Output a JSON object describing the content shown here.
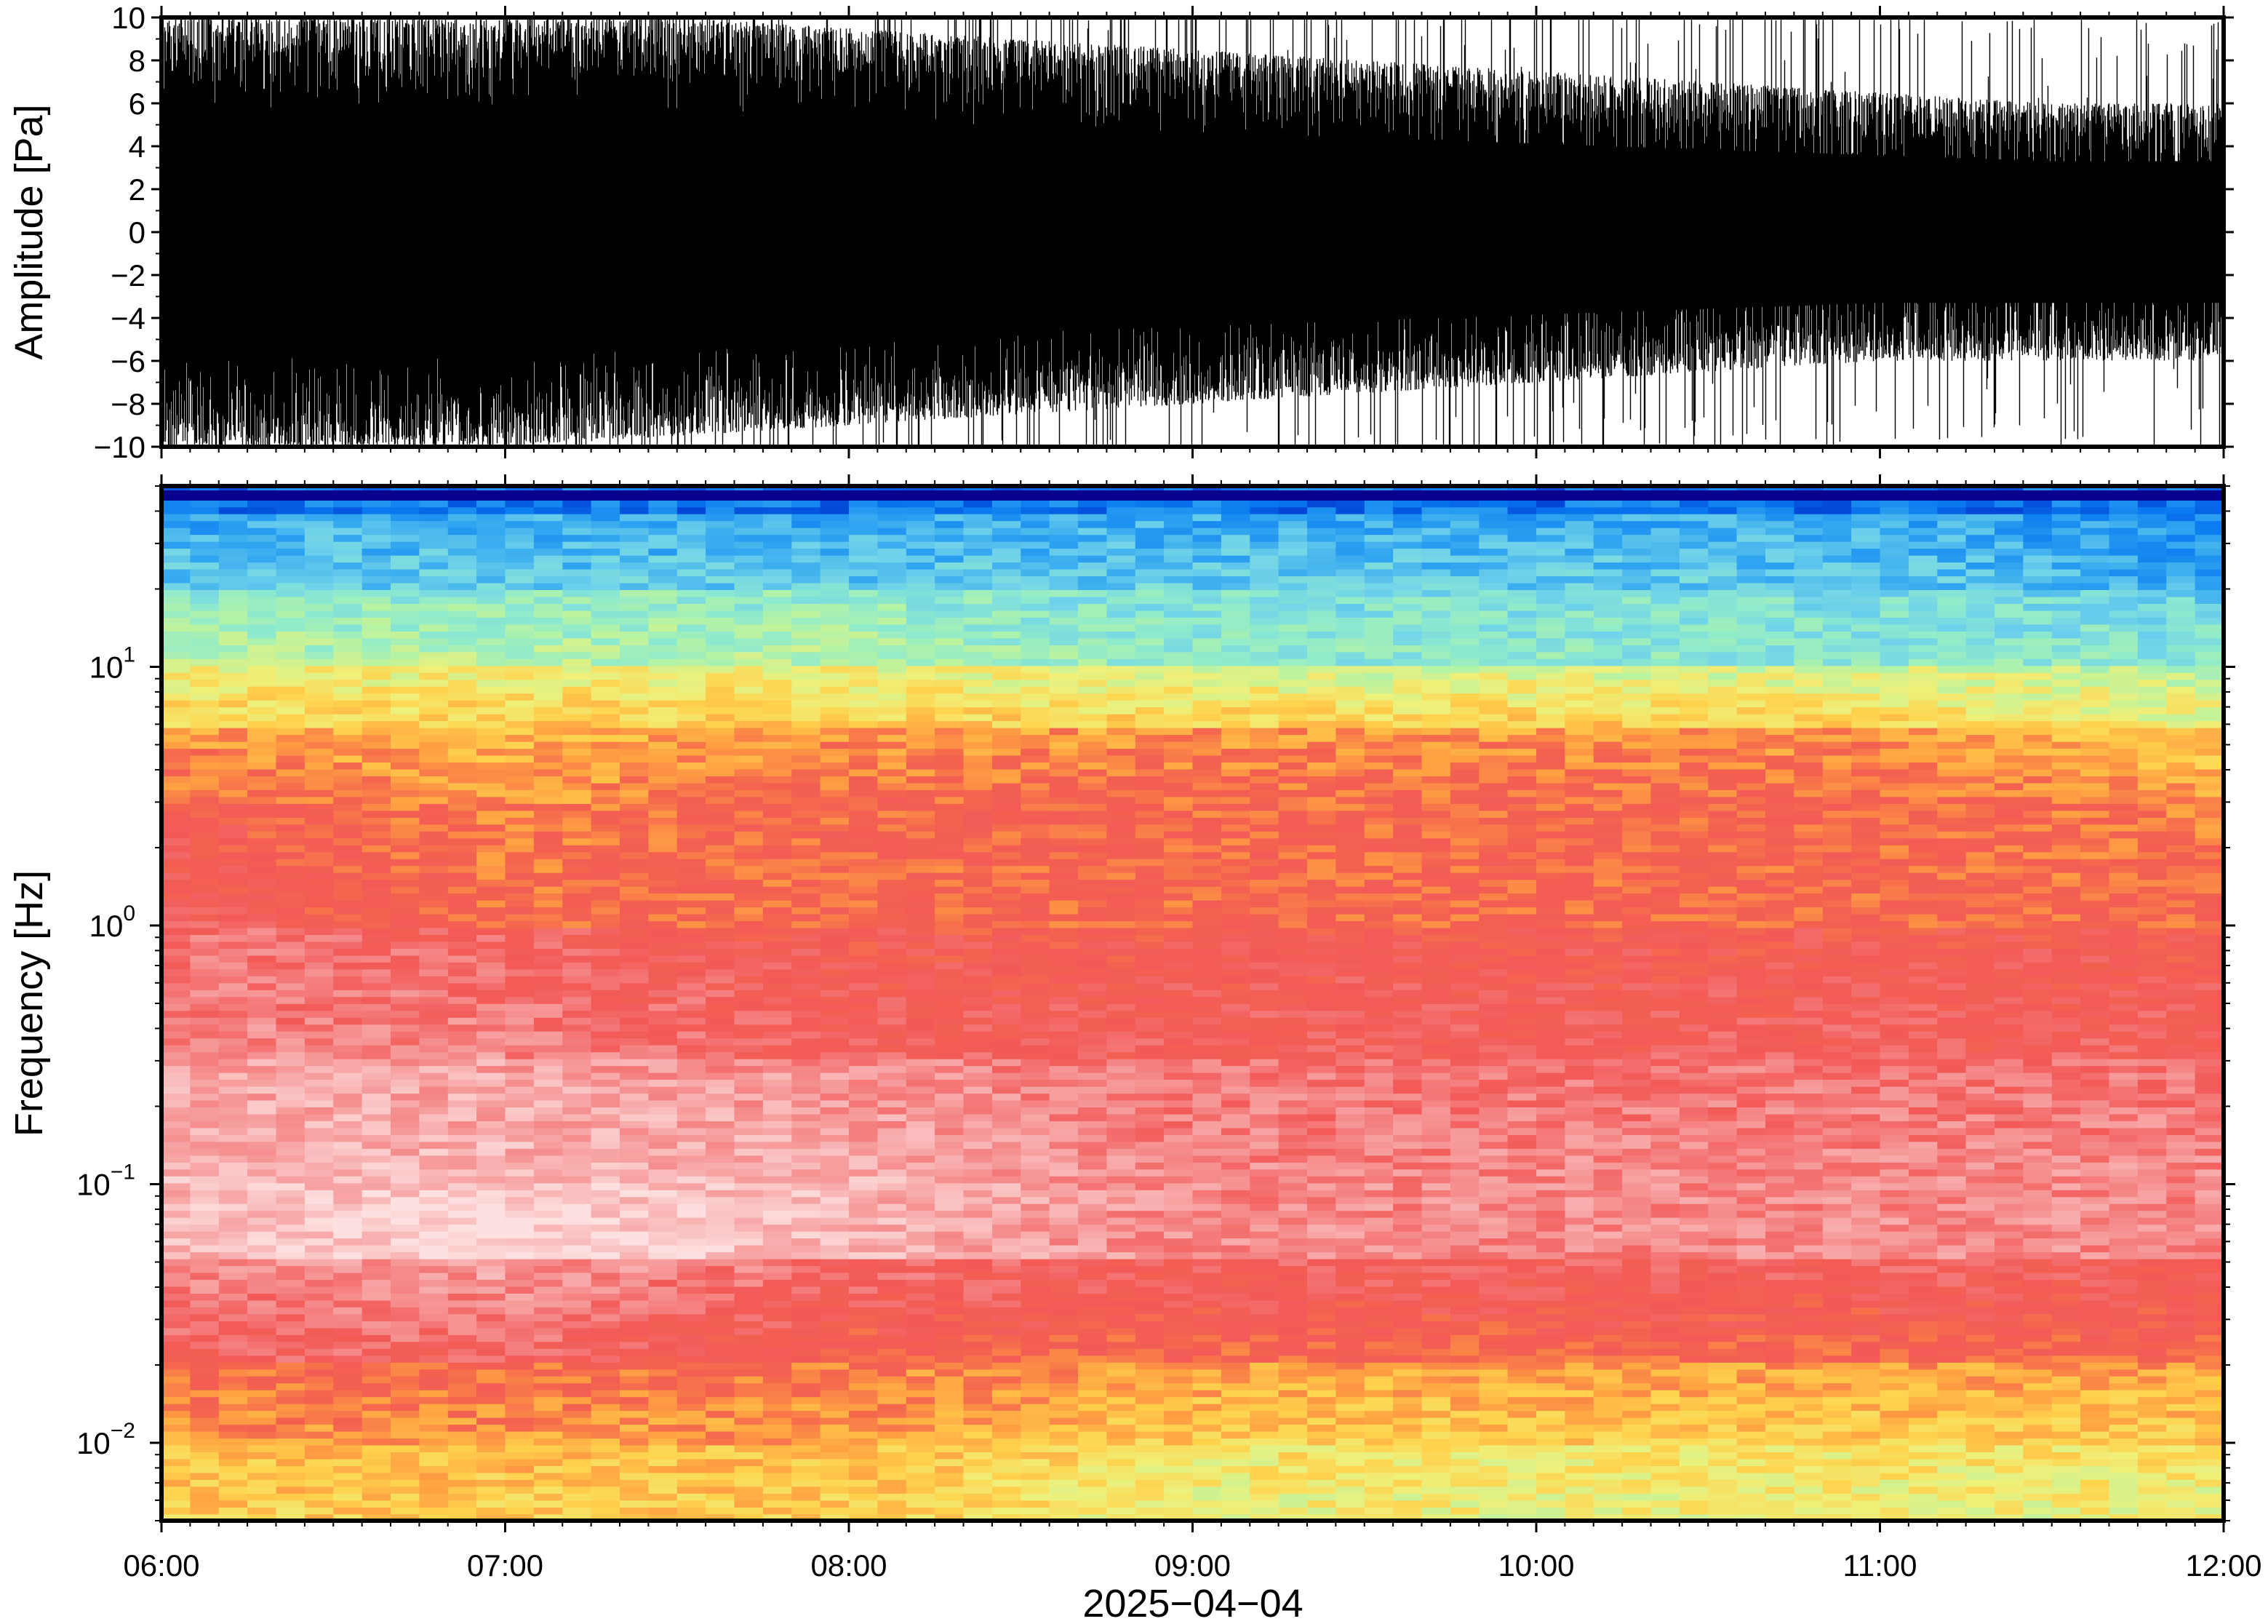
{
  "chart_data": [
    {
      "type": "line",
      "panel": "waveform",
      "title": "",
      "xlabel": "",
      "ylabel": "Amplitude [Pa]",
      "ylim": [
        -10,
        10
      ],
      "yticks": [
        10,
        8,
        6,
        4,
        2,
        0,
        -2,
        -4,
        -6,
        -8,
        -10
      ],
      "ytick_labels": [
        "10",
        "8",
        "6",
        "4",
        "2",
        "0",
        "−2",
        "−4",
        "−6",
        "−8",
        "−10"
      ],
      "xlim": [
        "06:00",
        "12:00"
      ],
      "grid": false,
      "series": [
        {
          "color": "#000000",
          "x": [
            "06:00",
            "06:30",
            "07:00",
            "07:30",
            "08:00",
            "08:30",
            "09:00",
            "09:30",
            "10:00",
            "10:30",
            "11:00",
            "11:30",
            "12:00"
          ],
          "envelope_upper": [
            10,
            10,
            10,
            10,
            9.5,
            9,
            8.5,
            8,
            7.5,
            7,
            6.5,
            6,
            6
          ],
          "envelope_lower": [
            -10,
            -10,
            -10,
            -9.5,
            -9,
            -8.5,
            -8,
            -7.5,
            -7,
            -6.5,
            -6,
            -6,
            -6
          ]
        }
      ]
    },
    {
      "type": "heatmap",
      "panel": "spectrogram",
      "title": "",
      "xlabel": "2025−04−04",
      "ylabel": "Frequency [Hz]",
      "yscale": "log",
      "ylim": [
        0.005,
        50
      ],
      "yticks": [
        0.01,
        0.1,
        1,
        10
      ],
      "ytick_labels": [
        {
          "base": "10",
          "exp": "−2"
        },
        {
          "base": "10",
          "exp": "−1"
        },
        {
          "base": "10",
          "exp": "0"
        },
        {
          "base": "10",
          "exp": "1"
        }
      ],
      "x_ticks": [
        "06:00",
        "07:00",
        "08:00",
        "09:00",
        "10:00",
        "11:00",
        "12:00"
      ],
      "xlim": [
        "06:00",
        "12:00"
      ],
      "colormap": [
        "#08008c",
        "#0036d0",
        "#0a7cf0",
        "#2fa4f0",
        "#6fd2ea",
        "#8eeacd",
        "#b7f3a3",
        "#eef07a",
        "#ffd24d",
        "#ffa042",
        "#f36050",
        "#f25a58",
        "#f58a8a",
        "#f9b8b8",
        "#fde0e0"
      ],
      "frequency_bands_hz": [
        0.005,
        0.01,
        0.02,
        0.05,
        0.1,
        0.3,
        1,
        3,
        6,
        10,
        20,
        40,
        50
      ],
      "time_columns": [
        "06:00",
        "07:00",
        "08:00",
        "09:00",
        "10:00",
        "11:00",
        "12:00"
      ],
      "colormap_index_per_band": [
        [
          8,
          8,
          8,
          7,
          7,
          7,
          7
        ],
        [
          9,
          9,
          9,
          8,
          8,
          8,
          8
        ],
        [
          11,
          11,
          10,
          10,
          10,
          10,
          10
        ],
        [
          13,
          14,
          13,
          12,
          12,
          12,
          12
        ],
        [
          13,
          13,
          13,
          12,
          12,
          12,
          12
        ],
        [
          12,
          12,
          11,
          11,
          11,
          11,
          11
        ],
        [
          11,
          10,
          10,
          10,
          10,
          10,
          10
        ],
        [
          10,
          9,
          10,
          10,
          10,
          10,
          9
        ],
        [
          8,
          8,
          8,
          8,
          8,
          8,
          7
        ],
        [
          6,
          6,
          6,
          5,
          5,
          5,
          5
        ],
        [
          4,
          4,
          4,
          4,
          4,
          4,
          3
        ],
        [
          2,
          2,
          2,
          2,
          2,
          2,
          2
        ]
      ]
    }
  ]
}
